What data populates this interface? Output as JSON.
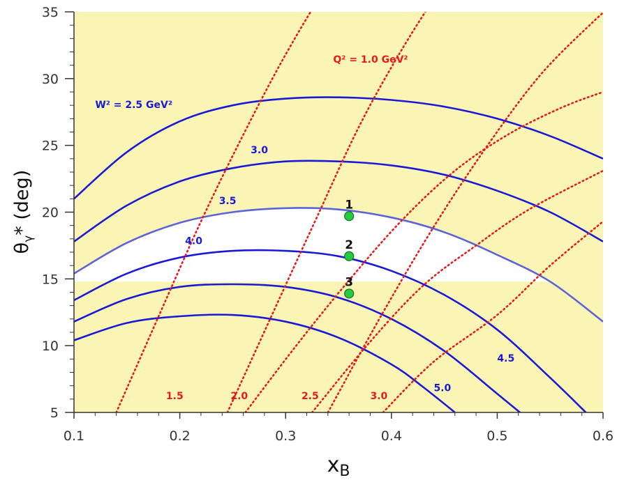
{
  "chart_data": {
    "type": "line",
    "title": "",
    "xlabel": "x",
    "xlabel_sub": "B",
    "ylabel": "θ",
    "ylabel_sub": "γ",
    "ylabel_suffix": "* (deg)",
    "xlim": [
      0.1,
      0.6
    ],
    "ylim": [
      5,
      35
    ],
    "x_ticks": [
      0.1,
      0.2,
      0.3,
      0.4,
      0.5,
      0.6
    ],
    "x_tick_labels": [
      "0.1",
      "0.2",
      "0.3",
      "0.4",
      "0.5",
      "0.6"
    ],
    "y_ticks": [
      5,
      10,
      15,
      20,
      25,
      30,
      35
    ],
    "y_tick_labels": [
      "5",
      "10",
      "15",
      "20",
      "25",
      "30",
      "35"
    ],
    "background": {
      "color": "#fbf5b5",
      "unshaded_band": {
        "color": "#ffffff",
        "y_min": 14.8,
        "upper_curve": "3.5"
      }
    },
    "colors": {
      "w2_curves": "#1a1ad6",
      "q2_lines": "#e41a1c",
      "points": "#27c93f",
      "axis": "#333333"
    },
    "w2_curves": [
      {
        "label": "W² = 2.5 GeV²",
        "x": [
          0.1,
          0.15,
          0.2,
          0.25,
          0.3,
          0.35,
          0.4,
          0.45,
          0.5,
          0.55,
          0.6
        ],
        "y": [
          21.0,
          24.5,
          26.8,
          28.0,
          28.5,
          28.6,
          28.4,
          27.9,
          27.0,
          25.7,
          24.0
        ]
      },
      {
        "label": "3.0",
        "x": [
          0.1,
          0.15,
          0.2,
          0.25,
          0.3,
          0.35,
          0.4,
          0.45,
          0.5,
          0.55,
          0.6
        ],
        "y": [
          17.8,
          20.5,
          22.3,
          23.3,
          23.8,
          23.8,
          23.5,
          22.8,
          21.6,
          20.0,
          17.8
        ]
      },
      {
        "label": "3.5",
        "x": [
          0.1,
          0.15,
          0.2,
          0.25,
          0.3,
          0.35,
          0.4,
          0.45,
          0.5,
          0.55,
          0.6
        ],
        "y": [
          15.4,
          17.7,
          19.2,
          20.0,
          20.3,
          20.2,
          19.6,
          18.5,
          16.8,
          14.8,
          11.8
        ]
      },
      {
        "label": "4.0",
        "x": [
          0.1,
          0.15,
          0.2,
          0.25,
          0.3,
          0.35,
          0.4,
          0.45,
          0.5,
          0.55,
          0.585
        ],
        "y": [
          13.4,
          15.4,
          16.6,
          17.1,
          17.1,
          16.7,
          15.6,
          13.8,
          11.2,
          7.6,
          4.9
        ]
      },
      {
        "label": "4.5",
        "x": [
          0.1,
          0.15,
          0.2,
          0.25,
          0.3,
          0.35,
          0.4,
          0.45,
          0.5,
          0.523
        ],
        "y": [
          11.8,
          13.5,
          14.4,
          14.6,
          14.4,
          13.6,
          12.0,
          9.6,
          6.4,
          4.9
        ]
      },
      {
        "label": "5.0",
        "x": [
          0.1,
          0.15,
          0.2,
          0.25,
          0.3,
          0.35,
          0.4,
          0.43,
          0.46
        ],
        "y": [
          10.4,
          11.7,
          12.2,
          12.3,
          11.8,
          10.6,
          8.6,
          6.9,
          5.0
        ]
      }
    ],
    "q2_lines": [
      {
        "label": "Q² = 1.0 GeV²",
        "x": [
          0.245,
          0.29,
          0.33,
          0.37,
          0.41,
          0.45
        ],
        "y": [
          5,
          12.8,
          19.7,
          26.5,
          32.2,
          37.2
        ]
      },
      {
        "label": "1.5",
        "x": [
          0.34,
          0.39,
          0.44,
          0.49,
          0.54,
          0.59,
          0.62
        ],
        "y": [
          5,
          12.2,
          18.9,
          24.9,
          30.2,
          34.2,
          36.3
        ]
      },
      {
        "label": "2.0",
        "x": [
          0.262,
          0.31,
          0.36,
          0.41,
          0.46,
          0.51,
          0.56,
          0.6
        ],
        "y": [
          5,
          10.0,
          14.9,
          19.4,
          23.1,
          25.8,
          27.8,
          29.0
        ]
      },
      {
        "label": "2.5",
        "x": [
          0.325,
          0.38,
          0.43,
          0.48,
          0.53,
          0.6
        ],
        "y": [
          5,
          10.3,
          14.5,
          17.5,
          20.2,
          23.1
        ]
      },
      {
        "label": "3.0",
        "x": [
          0.392,
          0.44,
          0.5,
          0.55,
          0.6
        ],
        "y": [
          5,
          8.8,
          12.3,
          16.0,
          19.3
        ]
      },
      {
        "label": "",
        "x": [
          0.14,
          0.18,
          0.22,
          0.26,
          0.3,
          0.34,
          0.38
        ],
        "y": [
          5,
          12.2,
          19.3,
          25.8,
          31.8,
          37.0,
          41.0
        ]
      }
    ],
    "points": [
      {
        "label": "1",
        "x": 0.36,
        "y": 19.7
      },
      {
        "label": "2",
        "x": 0.36,
        "y": 16.7
      },
      {
        "label": "3",
        "x": 0.36,
        "y": 13.9
      }
    ]
  }
}
